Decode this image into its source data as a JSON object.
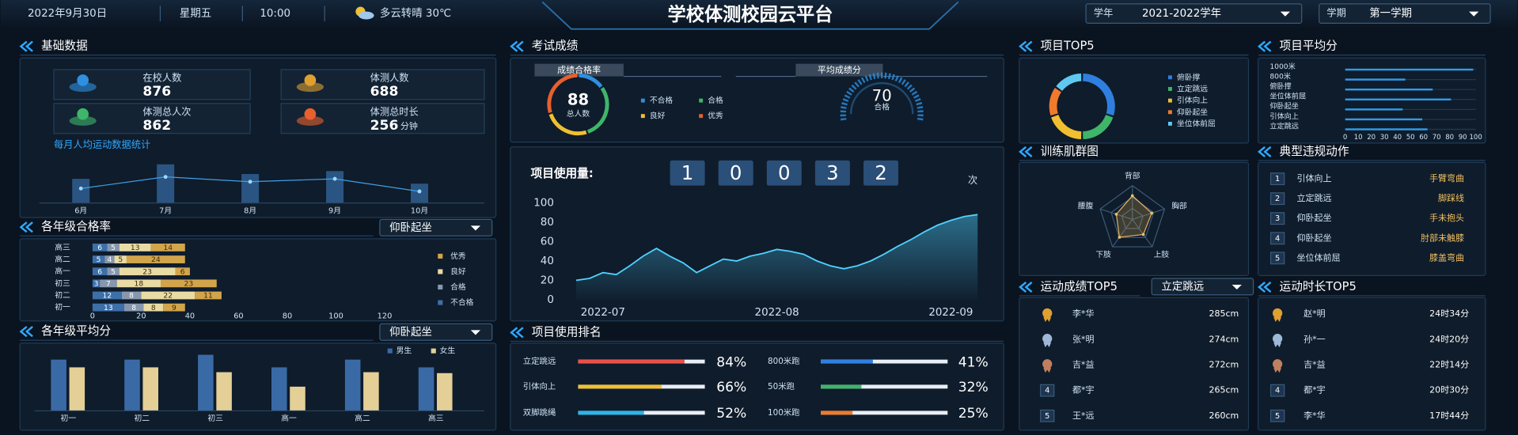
{
  "header": {
    "date": "2022年9月30日",
    "weekday": "星期五",
    "time": "10:00",
    "weather": "多云转晴 30℃",
    "title": "学校体测校园云平台",
    "year_label": "学年",
    "year_value": "2021-2022学年",
    "term_label": "学期",
    "term_value": "第一学期"
  },
  "basic": {
    "title": "基础数据",
    "stats": [
      {
        "label": "在校人数",
        "value": 876
      },
      {
        "label": "体测人数",
        "value": 688
      },
      {
        "label": "体测总人次",
        "value": 862
      },
      {
        "label": "体测总时长",
        "value": 256,
        "unit": "分钟"
      }
    ],
    "chart": {
      "title": "每月人均运动数据统计",
      "categories": [
        "6月",
        "7月",
        "8月",
        "9月",
        "10月"
      ],
      "bars": [
        25,
        40,
        30,
        33,
        20
      ],
      "line": [
        15,
        27,
        22,
        25,
        12
      ]
    }
  },
  "pass_rate": {
    "title": "各年级合格率",
    "selector": "仰卧起坐",
    "chart": {
      "type": "bar",
      "categories": [
        "高三",
        "高二",
        "高一",
        "初三",
        "初二",
        "初一"
      ],
      "series": [
        {
          "name": "不合格",
          "color": "#3d6fa8",
          "values": [
            6,
            5,
            6,
            3,
            12,
            13
          ]
        },
        {
          "name": "合格",
          "color": "#8797ad",
          "values": [
            5,
            4,
            5,
            7,
            8,
            8
          ]
        },
        {
          "name": "良好",
          "color": "#e9dba4",
          "values": [
            13,
            5,
            23,
            18,
            22,
            8
          ]
        },
        {
          "name": "优秀",
          "color": "#d2a54c",
          "values": [
            14,
            24,
            6,
            23,
            11,
            9
          ]
        }
      ],
      "xlim": [
        0,
        120
      ],
      "xticks": [
        0,
        20,
        40,
        60,
        80,
        100,
        120
      ]
    }
  },
  "avg_score": {
    "title": "各年级平均分",
    "selector": "仰卧起坐",
    "chart": {
      "type": "bar",
      "categories": [
        "初一",
        "初二",
        "初三",
        "高一",
        "高二",
        "高三"
      ],
      "series": [
        {
          "name": "男生",
          "color": "#3a6aa6",
          "values": [
            53,
            53,
            58,
            45,
            53,
            45
          ]
        },
        {
          "name": "女生",
          "color": "#e4cf97",
          "values": [
            45,
            45,
            40,
            25,
            40,
            39
          ]
        }
      ]
    }
  },
  "exam": {
    "title": "考试成绩",
    "pass": {
      "title": "成绩合格率",
      "total": 88,
      "total_label": "总人数",
      "segments": [
        {
          "name": "不合格",
          "color": "#2f8fe0",
          "value": 15
        },
        {
          "name": "合格",
          "color": "#3fb56a",
          "value": 30
        },
        {
          "name": "良好",
          "color": "#f0c030",
          "value": 25
        },
        {
          "name": "优秀",
          "color": "#e8602c",
          "value": 30
        }
      ]
    },
    "average": {
      "title": "平均成绩分",
      "value": 70,
      "label": "合格"
    }
  },
  "usage": {
    "label": "项目使用量:",
    "digits": [
      "1",
      "0",
      "0",
      "3",
      "2"
    ],
    "unit": "次",
    "chart": {
      "type": "line",
      "color": "#4fd1ff",
      "categories": [
        null,
        null,
        "2022-07",
        null,
        null,
        null,
        null,
        null,
        null,
        null,
        null,
        null,
        null,
        null,
        null,
        "2022-08",
        null,
        null,
        null,
        null,
        null,
        null,
        null,
        null,
        null,
        null,
        null,
        null,
        "2022-09",
        null,
        null
      ],
      "values": [
        20,
        22,
        28,
        26,
        35,
        45,
        53,
        45,
        38,
        28,
        35,
        42,
        40,
        45,
        48,
        52,
        50,
        47,
        40,
        35,
        32,
        35,
        40,
        47,
        55,
        62,
        70,
        77,
        82,
        86,
        88
      ],
      "ylim": [
        0,
        100
      ],
      "yticks": [
        0,
        20,
        40,
        60,
        80,
        100
      ]
    }
  },
  "ranking": {
    "title": "项目使用排名",
    "xlim": [
      0,
      100
    ],
    "items": [
      {
        "name": "立定跳远",
        "value": 84,
        "value_label": "84%",
        "color": "#e8504a"
      },
      {
        "name": "引体向上",
        "value": 66,
        "value_label": "66%",
        "color": "#f0c030"
      },
      {
        "name": "双脚跳绳",
        "value": 52,
        "value_label": "52%",
        "color": "#29b6e8"
      },
      {
        "name": "800米跑",
        "value": 41,
        "value_label": "41%",
        "color": "#2f7fe0"
      },
      {
        "name": "50米跑",
        "value": 32,
        "value_label": "32%",
        "color": "#3fb56a"
      },
      {
        "name": "100米跑",
        "value": 25,
        "value_label": "25%",
        "color": "#f07a2c"
      }
    ]
  },
  "top5": {
    "title": "项目TOP5",
    "segments": [
      {
        "name": "俯卧撑",
        "color": "#2f7fe0",
        "value": 30
      },
      {
        "name": "立定跳远",
        "color": "#3fb56a",
        "value": 20
      },
      {
        "name": "引体向上",
        "color": "#f0c030",
        "value": 20
      },
      {
        "name": "仰卧起坐",
        "color": "#f07a2c",
        "value": 15
      },
      {
        "name": "坐位体前屈",
        "color": "#5fc8f0",
        "value": 15
      }
    ]
  },
  "proj_avg": {
    "title": "项目平均分",
    "color": "#2f9be8",
    "categories": [
      "1000米",
      "800米",
      "俯卧撑",
      "坐位体前屈",
      "仰卧起坐",
      "引体向上",
      "立定跳远"
    ],
    "values": [
      98,
      46,
      67,
      81,
      44,
      59,
      63
    ],
    "xlim": [
      0,
      100
    ],
    "xticks": [
      0,
      10,
      20,
      30,
      40,
      50,
      60,
      70,
      80,
      90,
      100
    ]
  },
  "radar": {
    "title": "训练肌群图",
    "axes": [
      "背部",
      "胸部",
      "上肢",
      "下肢",
      "腰腹"
    ],
    "values": [
      70,
      60,
      55,
      65,
      50
    ],
    "ylim": [
      0,
      100
    ]
  },
  "violations": {
    "title": "典型违规动作",
    "rows": [
      {
        "rank": "1",
        "item": "引体向上",
        "issue": "手臂弯曲"
      },
      {
        "rank": "2",
        "item": "立定跳远",
        "issue": "脚踩线"
      },
      {
        "rank": "3",
        "item": "仰卧起坐",
        "issue": "手未抱头"
      },
      {
        "rank": "4",
        "item": "仰卧起坐",
        "issue": "肘部未触膝"
      },
      {
        "rank": "5",
        "item": "坐位体前屈",
        "issue": "膝盖弯曲"
      }
    ]
  },
  "score_top5": {
    "title": "运动成绩TOP5",
    "selector": "立定跳远",
    "rows": [
      {
        "name": "李*华",
        "score": "285cm"
      },
      {
        "name": "张*明",
        "score": "274cm"
      },
      {
        "name": "吉*益",
        "score": "272cm"
      },
      {
        "rank": "4",
        "name": "都*宇",
        "score": "265cm"
      },
      {
        "rank": "5",
        "name": "王*远",
        "score": "260cm"
      }
    ]
  },
  "time_top5": {
    "title": "运动时长TOP5",
    "rows": [
      {
        "name": "赵*明",
        "score": "24时34分"
      },
      {
        "name": "孙*一",
        "score": "24时20分"
      },
      {
        "name": "吉*益",
        "score": "22时14分"
      },
      {
        "rank": "4",
        "name": "都*宇",
        "score": "20时30分"
      },
      {
        "rank": "5",
        "name": "李*华",
        "score": "17时44分"
      }
    ]
  }
}
